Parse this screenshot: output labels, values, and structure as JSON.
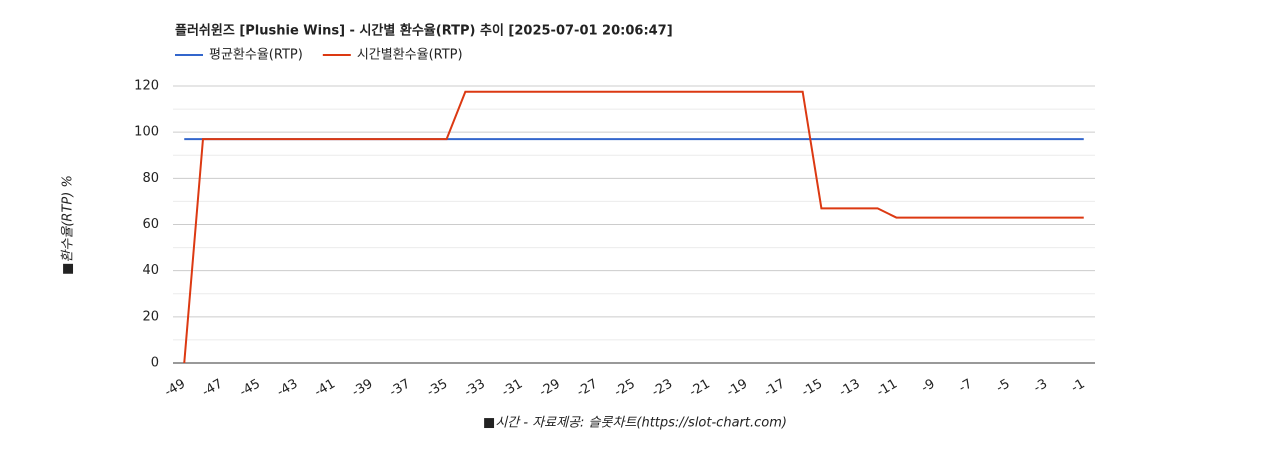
{
  "chart_data": {
    "type": "line",
    "title": "플러쉬윈즈 [Plushie Wins] - 시간별 환수율(RTP) 추이 [2025-07-01 20:06:47]",
    "x_label": "■시간 - 자료제공: 슬롯차트(https://slot-chart.com)",
    "y_label": "■환수율(RTP) %",
    "x": [
      -49,
      -48,
      -47,
      -46,
      -45,
      -44,
      -43,
      -42,
      -41,
      -40,
      -39,
      -38,
      -37,
      -36,
      -35,
      -34,
      -33,
      -32,
      -31,
      -30,
      -29,
      -28,
      -27,
      -26,
      -25,
      -24,
      -23,
      -22,
      -21,
      -20,
      -19,
      -18,
      -17,
      -16,
      -15,
      -14,
      -13,
      -12,
      -11,
      -10,
      -9,
      -8,
      -7,
      -6,
      -5,
      -4,
      -3,
      -2,
      -1
    ],
    "series": [
      {
        "name": "평균환수율(RTP)",
        "color": "#3366cc",
        "values": [
          97,
          97,
          97,
          97,
          97,
          97,
          97,
          97,
          97,
          97,
          97,
          97,
          97,
          97,
          97,
          97,
          97,
          97,
          97,
          97,
          97,
          97,
          97,
          97,
          97,
          97,
          97,
          97,
          97,
          97,
          97,
          97,
          97,
          97,
          97,
          97,
          97,
          97,
          97,
          97,
          97,
          97,
          97,
          97,
          97,
          97,
          97,
          97,
          97
        ]
      },
      {
        "name": "시간별환수율(RTP)",
        "color": "#dc3912",
        "values": [
          0,
          97,
          97,
          97,
          97,
          97,
          97,
          97,
          97,
          97,
          97,
          97,
          97,
          97,
          97,
          117.5,
          117.5,
          117.5,
          117.5,
          117.5,
          117.5,
          117.5,
          117.5,
          117.5,
          117.5,
          117.5,
          117.5,
          117.5,
          117.5,
          117.5,
          117.5,
          117.5,
          117.5,
          117.5,
          67,
          67,
          67,
          67,
          63,
          63,
          63,
          63,
          63,
          63,
          63,
          63,
          63,
          63,
          63
        ]
      }
    ],
    "xlim": [
      -49.6,
      -0.4
    ],
    "xticks": [
      -49,
      -47,
      -45,
      -43,
      -41,
      -39,
      -37,
      -35,
      -33,
      -31,
      -29,
      -27,
      -25,
      -23,
      -21,
      -19,
      -17,
      -15,
      -13,
      -11,
      -9,
      -7,
      -5,
      -3,
      -1
    ],
    "ylim": [
      0,
      120
    ],
    "yticks": [
      0,
      20,
      40,
      60,
      80,
      100,
      120
    ],
    "grid": true,
    "legend": "top-left"
  }
}
